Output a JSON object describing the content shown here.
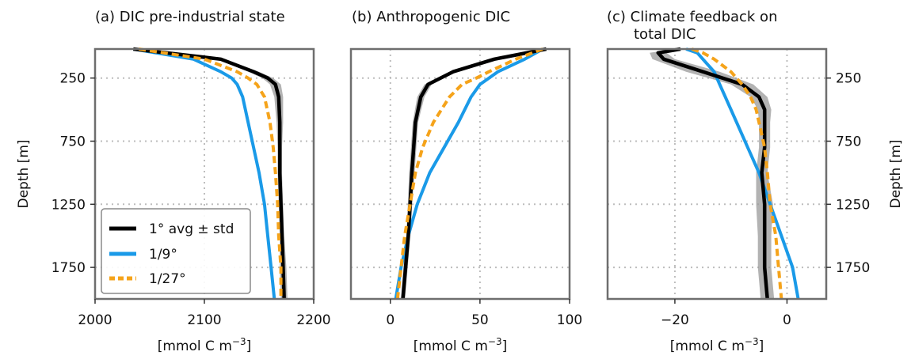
{
  "figure": {
    "legend": {
      "placement": "lower-left of panel a",
      "entries": [
        {
          "label": "1° avg ± std",
          "color": "#000000",
          "style": "solid"
        },
        {
          "label": "1/9°",
          "color": "#1a9ae8",
          "style": "solid"
        },
        {
          "label": "1/27°",
          "color": "#f5a31a",
          "style": "dashed"
        }
      ]
    },
    "colors": {
      "avg": "#000000",
      "std_band": "#9a9a9a",
      "r9": "#1a9ae8",
      "r27": "#f5a31a",
      "frame": "#6e6e6e",
      "grid": "#bdbdbd"
    }
  },
  "chart_data": [
    {
      "type": "line",
      "title": "(a) DIC pre-industrial state",
      "xlabel": "[mmol C m⁻³]",
      "ylabel": "Depth [m]",
      "ylabel_side": "left",
      "xlim": [
        2000,
        2200
      ],
      "ylim": [
        2000,
        20
      ],
      "xticks": [
        2000,
        2100,
        2200
      ],
      "yticks": [
        250,
        750,
        1250,
        1750
      ],
      "grid": true,
      "depth": [
        20,
        100,
        200,
        250,
        300,
        400,
        600,
        800,
        1000,
        1250,
        1500,
        1750,
        2000
      ],
      "std": [
        3,
        4,
        5,
        5,
        5,
        4,
        3,
        2,
        2,
        2,
        2,
        3,
        3
      ],
      "series": [
        {
          "name": "1° avg ± std",
          "values": [
            2035,
            2115,
            2145,
            2158,
            2165,
            2168,
            2169,
            2169,
            2169,
            2170,
            2171,
            2172,
            2173
          ]
        },
        {
          "name": "1/9°",
          "values": [
            2035,
            2090,
            2115,
            2125,
            2130,
            2135,
            2140,
            2145,
            2150,
            2155,
            2158,
            2161,
            2164
          ]
        },
        {
          "name": "1/27°",
          "values": [
            2040,
            2100,
            2130,
            2140,
            2148,
            2155,
            2160,
            2163,
            2165,
            2167,
            2168,
            2170,
            2170
          ]
        }
      ]
    },
    {
      "type": "line",
      "title": "(b) Anthropogenic DIC",
      "xlabel": "[mmol C m⁻³]",
      "ylabel": "",
      "xlim": [
        -22,
        100
      ],
      "ylim": [
        2000,
        20
      ],
      "xticks": [
        0,
        50,
        100
      ],
      "yticks": [
        250,
        750,
        1250,
        1750
      ],
      "grid": true,
      "depth": [
        20,
        100,
        200,
        250,
        300,
        400,
        600,
        800,
        1000,
        1250,
        1500,
        1750,
        2000
      ],
      "std": [
        1.5,
        2,
        2,
        2,
        2,
        2,
        1.5,
        1.5,
        1.5,
        1.2,
        1.2,
        1.2,
        1.2
      ],
      "series": [
        {
          "name": "1° avg ± std",
          "values": [
            87,
            58,
            35,
            28,
            21,
            17,
            14,
            13,
            12,
            11,
            10,
            8.5,
            7
          ]
        },
        {
          "name": "1/9°",
          "values": [
            85,
            75,
            60,
            55,
            50,
            45,
            38,
            30,
            22,
            15,
            10,
            6,
            3
          ]
        },
        {
          "name": "1/27°",
          "values": [
            85,
            70,
            55,
            48,
            40,
            33,
            24,
            18,
            14,
            11,
            8,
            6,
            4
          ]
        }
      ]
    },
    {
      "type": "line",
      "title": "(c) Climate feedback on\ntotal DIC",
      "title_lines": [
        "(c) Climate feedback on",
        "total DIC"
      ],
      "xlabel": "[mmol C m⁻³]",
      "ylabel": "Depth [m]",
      "ylabel_side": "right",
      "xlim": [
        -32,
        7
      ],
      "ylim": [
        2000,
        20
      ],
      "xticks": [
        -20,
        0
      ],
      "yticks": [
        250,
        750,
        1250,
        1750
      ],
      "grid": true,
      "depth": [
        20,
        50,
        100,
        200,
        300,
        400,
        500,
        600,
        800,
        1000,
        1250,
        1500,
        1750,
        2000
      ],
      "std": [
        1,
        1.5,
        2,
        3,
        2,
        1.5,
        1.2,
        1,
        1,
        1,
        1.5,
        1.2,
        1.2,
        1.2
      ],
      "series": [
        {
          "name": "1° avg ± std",
          "values": [
            -19,
            -23,
            -22,
            -15,
            -8,
            -5,
            -4,
            -4,
            -4,
            -4.5,
            -4,
            -4,
            -4,
            -3.5
          ]
        },
        {
          "name": "1/9°",
          "values": [
            -18,
            -16,
            -15,
            -13,
            -12,
            -11,
            -10,
            -9,
            -7,
            -5,
            -3,
            -1,
            1,
            2
          ]
        },
        {
          "name": "1/27°",
          "values": [
            -17,
            -15,
            -13,
            -10,
            -8,
            -6.5,
            -5.5,
            -5,
            -4,
            -3.5,
            -3,
            -2,
            -1.5,
            -1
          ]
        }
      ]
    }
  ]
}
